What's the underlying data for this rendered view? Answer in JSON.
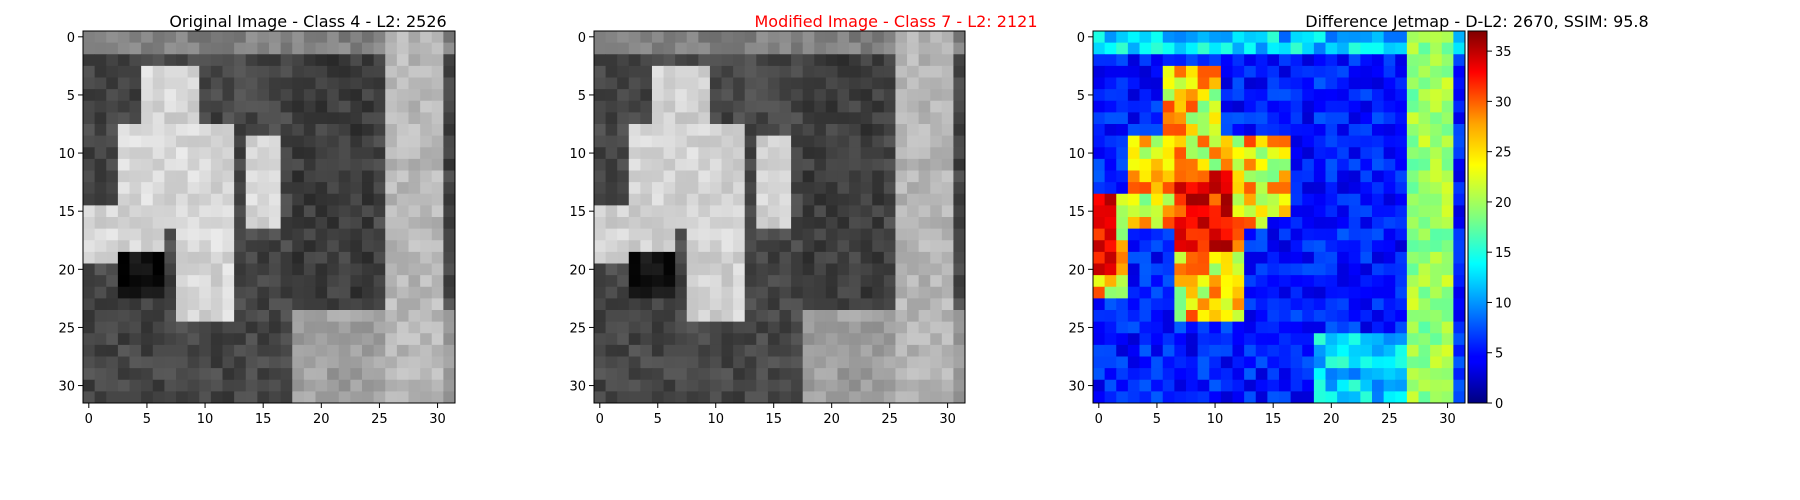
{
  "chart_data": [
    {
      "type": "heatmap",
      "title": "Original Image - Class 4 - L2: 2526",
      "title_color": "#000000",
      "colormap": "gray",
      "xlim": [
        -0.5,
        31.5
      ],
      "ylim": [
        31.5,
        -0.5
      ],
      "x_ticks": [
        0,
        5,
        10,
        15,
        20,
        25,
        30
      ],
      "y_ticks": [
        0,
        5,
        10,
        15,
        20,
        25,
        30
      ]
    },
    {
      "type": "heatmap",
      "title": "Modified Image - Class 7 - L2: 2121",
      "title_color": "#ff0000",
      "colormap": "gray",
      "xlim": [
        -0.5,
        31.5
      ],
      "ylim": [
        31.5,
        -0.5
      ],
      "x_ticks": [
        0,
        5,
        10,
        15,
        20,
        25,
        30
      ],
      "y_ticks": [
        0,
        5,
        10,
        15,
        20,
        25,
        30
      ]
    },
    {
      "type": "heatmap",
      "title": "Difference Jetmap - D-L2: 2670, SSIM: 95.8",
      "title_color": "#000000",
      "colormap": "jet",
      "xlim": [
        -0.5,
        31.5
      ],
      "ylim": [
        31.5,
        -0.5
      ],
      "x_ticks": [
        0,
        5,
        10,
        15,
        20,
        25,
        30
      ],
      "y_ticks": [
        0,
        5,
        10,
        15,
        20,
        25,
        30
      ],
      "colorbar": {
        "range": [
          0,
          37
        ],
        "ticks": [
          0,
          5,
          10,
          15,
          20,
          25,
          30,
          35
        ]
      }
    }
  ]
}
